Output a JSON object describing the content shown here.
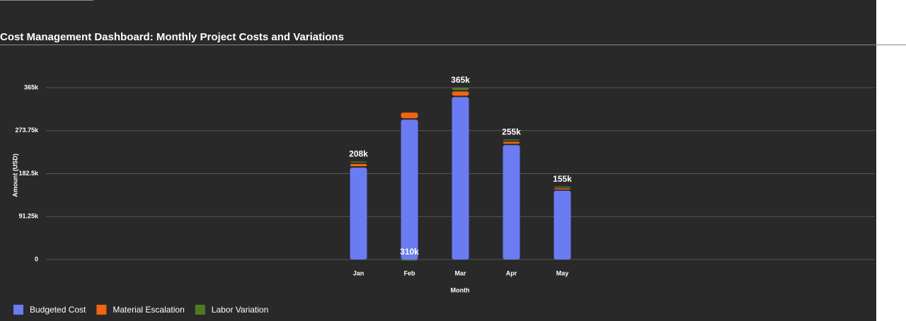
{
  "chart_data": {
    "type": "stacked-bar",
    "title": "Cost Management Dashboard: Monthly Project Costs and Variations",
    "x_label": "Month",
    "y_label": "Amount (USD)",
    "categories": [
      "Jan",
      "Feb",
      "Mar",
      "Apr",
      "May"
    ],
    "series": [
      {
        "name": "Budgeted Cost",
        "color": "#6b7bf2",
        "values": [
          195000,
          297000,
          345000,
          243000,
          146000
        ]
      },
      {
        "name": "Material Escalation",
        "color": "#f26412",
        "values": [
          8000,
          15000,
          12000,
          7000,
          5000
        ]
      },
      {
        "name": "Labor Variation",
        "color": "#4f7a21",
        "values": [
          5000,
          -2000,
          8000,
          5000,
          4000
        ]
      }
    ],
    "totals": {
      "values": [
        208000,
        310000,
        365000,
        255000,
        155000
      ],
      "value_labels": [
        "208k",
        "310k",
        "365k",
        "255k",
        "155k"
      ]
    },
    "ylim": [
      0,
      365000
    ],
    "yticks": [
      0,
      {
        "value": 91250,
        "label": "91.25k"
      },
      {
        "value": 182500,
        "label": "182.5k"
      },
      {
        "value": 273750,
        "label": "273.75k"
      },
      {
        "value": 365000,
        "label": "365k"
      }
    ],
    "grid": true,
    "legend": "bottom-left"
  }
}
